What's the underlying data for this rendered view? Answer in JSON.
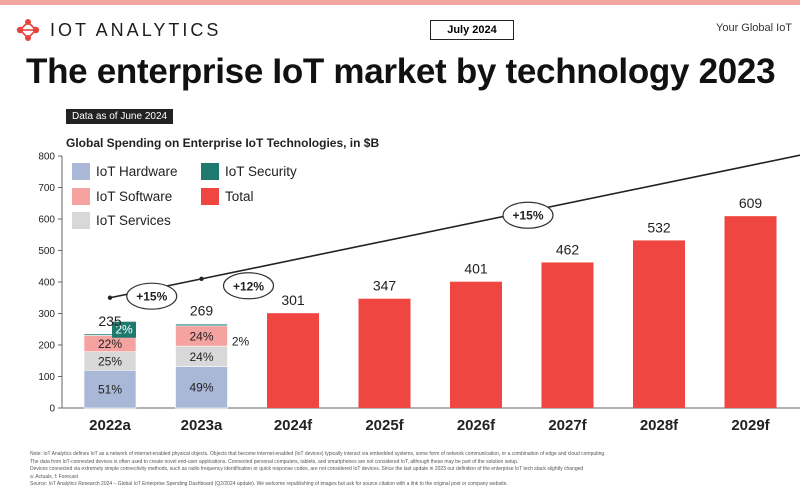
{
  "header": {
    "brand": "IOT ANALYTICS",
    "date_badge": "July 2024",
    "tagline": "Your Global IoT",
    "title": "The enterprise IoT market by technology 2023",
    "as_of": "Data as of June 2024"
  },
  "colors": {
    "hardware": "#a8b8d6",
    "software": "#f4a3a0",
    "services": "#d8d8d8",
    "security": "#1e7a6e",
    "total": "#f04641",
    "accent": "#e8433e"
  },
  "chart_data": {
    "type": "bar",
    "title": "Global Spending on Enterprise IoT Technologies, in $B",
    "ylim": [
      0,
      800
    ],
    "yticks": [
      0,
      100,
      200,
      300,
      400,
      500,
      600,
      700,
      800
    ],
    "categories": [
      "2022a",
      "2023a",
      "2024f",
      "2025f",
      "2026f",
      "2027f",
      "2028f",
      "2029f"
    ],
    "totals": [
      235,
      269,
      301,
      347,
      401,
      462,
      532,
      609
    ],
    "legend": [
      "IoT Hardware",
      "IoT Security",
      "IoT Software",
      "Total",
      "IoT Services"
    ],
    "stacked": [
      {
        "category": "2022a",
        "series": [
          {
            "name": "IoT Hardware",
            "share": 51,
            "label": "51%"
          },
          {
            "name": "IoT Services",
            "share": 25,
            "label": "25%"
          },
          {
            "name": "IoT Software",
            "share": 22,
            "label": "22%"
          },
          {
            "name": "IoT Security",
            "share": 2,
            "label": "2%"
          }
        ]
      },
      {
        "category": "2023a",
        "series": [
          {
            "name": "IoT Hardware",
            "share": 49,
            "label": "49%"
          },
          {
            "name": "IoT Services",
            "share": 24,
            "label": "24%"
          },
          {
            "name": "IoT Software",
            "share": 24,
            "label": "24%"
          },
          {
            "name": "IoT Security",
            "share": 2,
            "label": "2%"
          }
        ]
      }
    ],
    "growth_annotations": [
      "+15%",
      "+12%",
      "+15%"
    ],
    "trend_line": [
      {
        "x": "2022a",
        "y": 350
      },
      {
        "x": "2023a",
        "y": 410
      },
      {
        "x": "2029f",
        "y": 770
      }
    ]
  },
  "notes": [
    "Note: IoT Analytics defines IoT as a network of internet-enabled physical objects. Objects that become internet-enabled (IoT devices) typically interact via embedded systems, some form of network communication, or a combination of edge and cloud computing.",
    "The data from IoT-connected devices is often used to create novel end-user applications. Connected personal computers, tablets, and smartphones are not considered IoT, although these may be part of the solution setup.",
    "Devices connected via extremely simple connectivity methods, such as radio frequency identification or quick response codes, are not considered IoT devices. Since the last update in 2023 our definition of the enterprise IoT tech stack slightly changed",
    "a: Actuals, f: Forecast",
    "Source: IoT Analytics Research 2024 – Global IoT Enterprise Spending Dashboard (Q2/2024 update). We welcome republishing of images but ask for source citation with a link to the original post or company website."
  ]
}
